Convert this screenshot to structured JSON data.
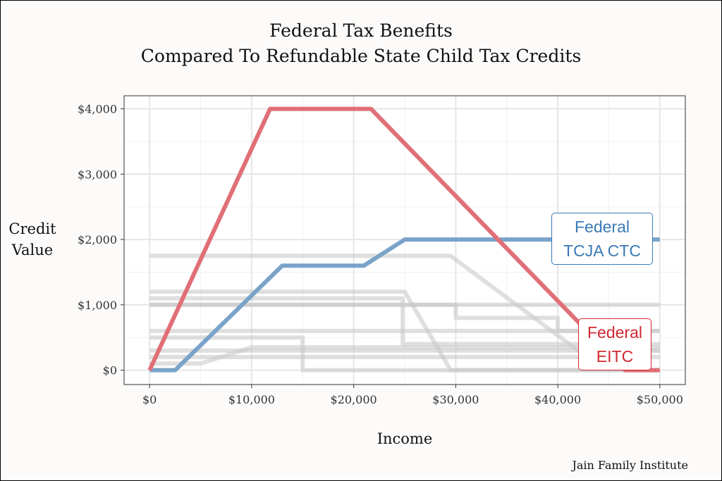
{
  "title_line1": "Federal Tax Benefits",
  "title_line2": "Compared To Refundable State Child Tax Credits",
  "source": "Jain Family Institute",
  "badges": {
    "ctc_line1": "Federal",
    "ctc_line2": "TCJA CTC",
    "eitc_line1": "Federal",
    "eitc_line2": "EITC"
  },
  "colors": {
    "eitc": "#e06f77",
    "ctc": "#7aa3c9",
    "state": "#c9c9c9",
    "grid": "#e6e6e6"
  },
  "chart_data": {
    "type": "line",
    "title": "Federal Tax Benefits\nCompared To Refundable State Child Tax Credits",
    "xlabel": "Income",
    "ylabel": "Credit Value",
    "xlim": [
      -2500,
      52500
    ],
    "ylim": [
      -220,
      4200
    ],
    "x_ticks": [
      0,
      10000,
      20000,
      30000,
      40000,
      50000
    ],
    "x_tick_labels": [
      "$0",
      "$10,000",
      "$20,000",
      "$30,000",
      "$40,000",
      "$50,000"
    ],
    "y_ticks": [
      0,
      1000,
      2000,
      3000,
      4000
    ],
    "y_tick_labels": [
      "$0",
      "$1,000",
      "$2,000",
      "$3,000",
      "$4,000"
    ],
    "grid": true,
    "series": [
      {
        "name": "",
        "role": "state",
        "points": [
          [
            0,
            1750
          ],
          [
            29500,
            1750
          ],
          [
            42000,
            300
          ],
          [
            50000,
            300
          ]
        ]
      },
      {
        "name": "",
        "role": "state",
        "points": [
          [
            0,
            1200
          ],
          [
            25000,
            1200
          ],
          [
            29500,
            0
          ],
          [
            50000,
            0
          ]
        ]
      },
      {
        "name": "",
        "role": "state",
        "points": [
          [
            0,
            1100
          ],
          [
            24800,
            1100
          ],
          [
            24800,
            400
          ],
          [
            50000,
            400
          ]
        ]
      },
      {
        "name": "",
        "role": "state",
        "points": [
          [
            0,
            1000
          ],
          [
            50000,
            1000
          ]
        ]
      },
      {
        "name": "",
        "role": "state",
        "points": [
          [
            0,
            1000
          ],
          [
            30000,
            1000
          ],
          [
            30000,
            800
          ],
          [
            40000,
            800
          ],
          [
            40000,
            600
          ],
          [
            50000,
            600
          ]
        ]
      },
      {
        "name": "",
        "role": "state",
        "points": [
          [
            0,
            600
          ],
          [
            50000,
            600
          ]
        ]
      },
      {
        "name": "",
        "role": "state",
        "points": [
          [
            0,
            500
          ],
          [
            15000,
            500
          ],
          [
            15000,
            0
          ],
          [
            50000,
            0
          ]
        ]
      },
      {
        "name": "",
        "role": "state",
        "points": [
          [
            0,
            300
          ],
          [
            50000,
            300
          ]
        ]
      },
      {
        "name": "",
        "role": "state",
        "points": [
          [
            0,
            200
          ],
          [
            50000,
            200
          ]
        ]
      },
      {
        "name": "",
        "role": "state",
        "points": [
          [
            0,
            100
          ],
          [
            5000,
            100
          ],
          [
            10000,
            350
          ],
          [
            50000,
            350
          ]
        ]
      },
      {
        "name": "Federal TCJA CTC",
        "role": "ctc",
        "points": [
          [
            0,
            0
          ],
          [
            2500,
            0
          ],
          [
            13000,
            1600
          ],
          [
            21000,
            1600
          ],
          [
            25000,
            2000
          ],
          [
            50000,
            2000
          ]
        ]
      },
      {
        "name": "Federal EITC",
        "role": "eitc",
        "points": [
          [
            0,
            0
          ],
          [
            11800,
            4000
          ],
          [
            21700,
            4000
          ],
          [
            46600,
            0
          ],
          [
            50000,
            0
          ]
        ]
      }
    ]
  }
}
